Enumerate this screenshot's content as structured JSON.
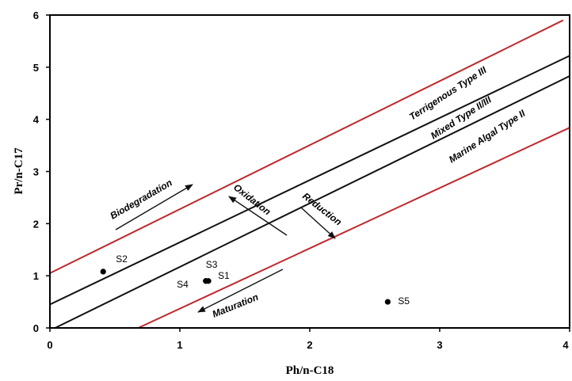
{
  "chart_data": {
    "type": "scatter",
    "xlabel": "Ph/n-C18",
    "ylabel": "Pr/n-C17",
    "xlim": [
      0,
      4
    ],
    "ylim": [
      0,
      6
    ],
    "xticks": [
      "0",
      "1",
      "2",
      "3",
      "4"
    ],
    "yticks": [
      "0",
      "1",
      "2",
      "3",
      "4",
      "5",
      "6"
    ],
    "grid": false,
    "points": [
      {
        "label": "S1",
        "x": 1.22,
        "y": 0.9
      },
      {
        "label": "S2",
        "x": 0.41,
        "y": 1.08
      },
      {
        "label": "S3",
        "x": 1.2,
        "y": 0.9
      },
      {
        "label": "S4",
        "x": 1.2,
        "y": 0.9
      },
      {
        "label": "S5",
        "x": 2.6,
        "y": 0.5
      }
    ],
    "lines": [
      {
        "color": "#c0282d",
        "x1": 0,
        "y1": 1.05,
        "x2": 3.95,
        "y2": 5.9
      },
      {
        "color": "#111111",
        "x1": 0,
        "y1": 0.45,
        "x2": 4,
        "y2": 5.22
      },
      {
        "color": "#111111",
        "x1": 0.04,
        "y1": 0,
        "x2": 4,
        "y2": 4.83
      },
      {
        "color": "#c0282d",
        "x1": 0.68,
        "y1": 0,
        "x2": 4,
        "y2": 3.84
      }
    ],
    "region_labels": [
      "Terrigenous Type III",
      "Mixed Type II/III",
      "Marine Algal Type II"
    ],
    "annotations": [
      "Biodegradation",
      "Oxidation",
      "Reduction",
      "Maturation"
    ]
  }
}
